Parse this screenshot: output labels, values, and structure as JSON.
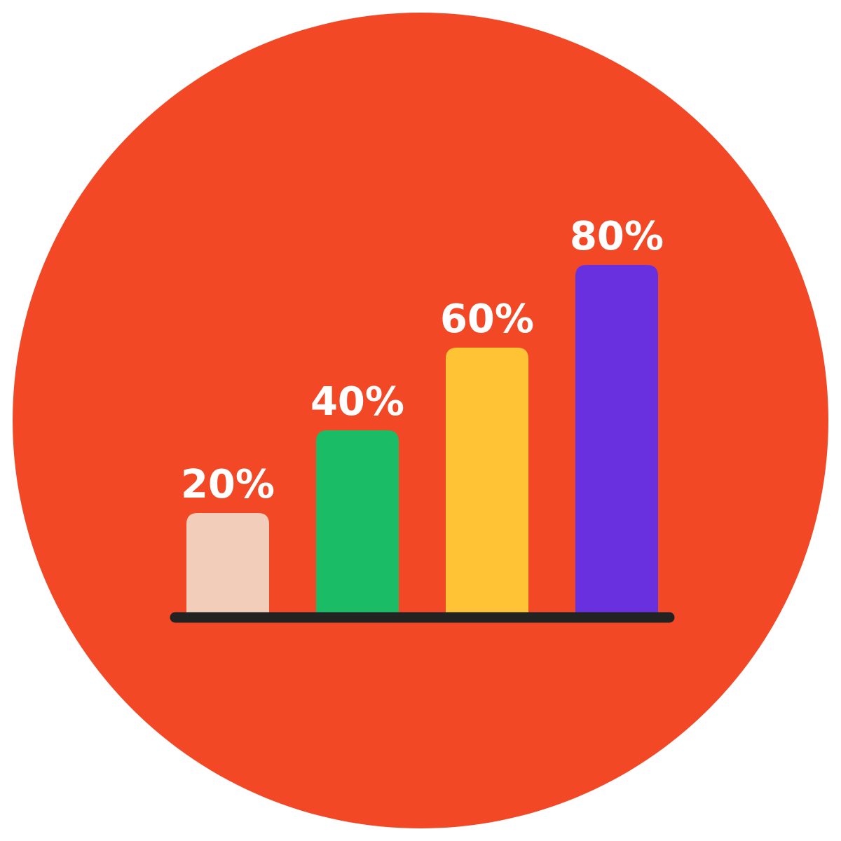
{
  "chart_data": {
    "type": "bar",
    "categories": [
      "",
      "",
      "",
      ""
    ],
    "values": [
      20,
      40,
      60,
      80
    ],
    "data_labels": [
      "20%",
      "40%",
      "60%",
      "80%"
    ],
    "bar_colors": [
      "#F2CDB9",
      "#1ABD65",
      "#FFC335",
      "#6930E0"
    ],
    "background_color": "#F24826",
    "baseline_color": "#222222",
    "label_color": "#FFFFFF",
    "grid": false,
    "legend": "none",
    "ylim": [
      0,
      100
    ]
  }
}
